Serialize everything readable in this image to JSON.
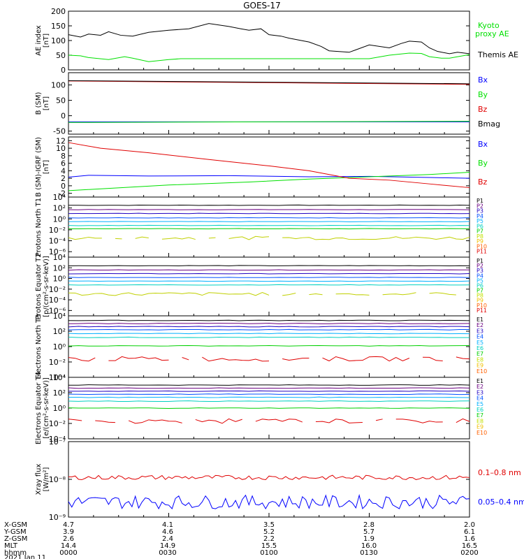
{
  "title": "GOES-17",
  "colors": {
    "black": "#000000",
    "green": "#00e000",
    "blue": "#0000ff",
    "red": "#e00000",
    "p": [
      "#000000",
      "#6a0080",
      "#2000c0",
      "#0050ff",
      "#00b0ff",
      "#00d0c0",
      "#00d000",
      "#c0e000",
      "#f0c000",
      "#ff6000",
      "#e00000"
    ]
  },
  "chart_data": [
    {
      "type": "line",
      "id": "ae",
      "ylabel": "AE index [nT]",
      "ylim": [
        0,
        200
      ],
      "yticks": [
        "0",
        "50",
        "100",
        "150",
        "200"
      ],
      "series": [
        {
          "name": "Kyoto proxy AE",
          "color": "green",
          "x": [
            0,
            3,
            5,
            10,
            14,
            16,
            20,
            25,
            28,
            38,
            45,
            50,
            56,
            60,
            70,
            75,
            80,
            85,
            88,
            90,
            93,
            95,
            100
          ],
          "y": [
            50,
            48,
            42,
            35,
            45,
            40,
            28,
            35,
            38,
            38,
            38,
            38,
            38,
            38,
            38,
            38,
            50,
            57,
            56,
            45,
            40,
            40,
            52
          ]
        },
        {
          "name": "Themis AE",
          "color": "black",
          "x": [
            0,
            3,
            5,
            8,
            10,
            13,
            16,
            20,
            25,
            30,
            35,
            40,
            43,
            45,
            48,
            50,
            53,
            55,
            60,
            63,
            65,
            70,
            75,
            80,
            83,
            85,
            88,
            90,
            92,
            95,
            97,
            100
          ],
          "y": [
            120,
            112,
            122,
            118,
            130,
            118,
            115,
            128,
            135,
            140,
            158,
            148,
            140,
            135,
            140,
            120,
            115,
            108,
            95,
            80,
            65,
            60,
            85,
            75,
            90,
            98,
            95,
            75,
            63,
            55,
            60,
            55
          ]
        }
      ],
      "legend": [
        "Kyoto",
        "proxy AE",
        "Themis AE"
      ]
    },
    {
      "type": "line",
      "id": "bsm",
      "ylabel": "B (SM) [nT]",
      "ylim": [
        -60,
        140
      ],
      "yticks": [
        "-50",
        "0",
        "50",
        "100"
      ],
      "series": [
        {
          "name": "Bx",
          "color": "blue",
          "x": [
            0,
            100
          ],
          "y": [
            -20,
            -20
          ]
        },
        {
          "name": "By",
          "color": "green",
          "x": [
            0,
            100
          ],
          "y": [
            -22,
            -18
          ]
        },
        {
          "name": "Bz",
          "color": "red",
          "x": [
            0,
            100
          ],
          "y": [
            113,
            102
          ]
        },
        {
          "name": "Bmag",
          "color": "black",
          "x": [
            0,
            100
          ],
          "y": [
            114,
            104
          ]
        }
      ],
      "legend": [
        "Bx",
        "By",
        "Bz",
        "Bmag"
      ]
    },
    {
      "type": "line",
      "id": "bigrf",
      "ylabel": "B (SM)-IGRF (SM) [nT]",
      "ylim": [
        -3,
        13
      ],
      "yticks": [
        "-2",
        "0",
        "2",
        "4",
        "6",
        "8",
        "10",
        "12"
      ],
      "series": [
        {
          "name": "Bx",
          "color": "blue",
          "x": [
            0,
            5,
            20,
            40,
            60,
            75,
            90,
            100
          ],
          "y": [
            2.3,
            2.8,
            2.6,
            2.7,
            2.4,
            2.5,
            2.2,
            2.0
          ]
        },
        {
          "name": "By",
          "color": "green",
          "x": [
            0,
            10,
            25,
            45,
            60,
            75,
            90,
            100
          ],
          "y": [
            -1.3,
            -0.7,
            0.2,
            1.0,
            1.8,
            2.4,
            3.0,
            3.6
          ]
        },
        {
          "name": "Bz",
          "color": "red",
          "x": [
            0,
            8,
            20,
            35,
            50,
            60,
            70,
            80,
            90,
            100
          ],
          "y": [
            11.5,
            10.0,
            8.8,
            7.0,
            5.3,
            4.0,
            2.0,
            1.5,
            0.5,
            -0.5
          ]
        }
      ],
      "legend": [
        "Bx",
        "By",
        "Bz"
      ]
    },
    {
      "type": "line",
      "id": "pnorth",
      "ylabel": "Protons North T1",
      "ylim": [
        -7,
        4
      ],
      "log": true,
      "yticks": [
        "10⁴",
        "10²",
        "10⁰",
        "10⁻²",
        "10⁻⁴",
        "10⁻⁶"
      ],
      "levels": [
        2.5,
        1.7,
        1.0,
        0.2,
        -0.5,
        -1.2,
        -1.8
      ],
      "series_names": [
        "P1",
        "P2",
        "P3",
        "P4",
        "P5",
        "P6",
        "P7",
        "P8",
        "P9",
        "P10",
        "P11"
      ]
    },
    {
      "type": "line",
      "id": "pequator",
      "ylabel": "Protons Equator T2 [p/(cm²-s-sr-keV)]",
      "ylim": [
        -7,
        4
      ],
      "log": true,
      "yticks": [
        "10⁴",
        "10²",
        "10⁰",
        "10⁻²",
        "10⁻⁴",
        "10⁻⁶"
      ],
      "levels": [
        2.4,
        1.6,
        0.9,
        0.2,
        -0.5,
        -1.2
      ],
      "series_names": [
        "P1",
        "P2",
        "P3",
        "P4",
        "P5",
        "P6",
        "P7",
        "P8",
        "P9",
        "P10",
        "P11"
      ]
    },
    {
      "type": "line",
      "id": "enorth",
      "ylabel": "Electrons North T3",
      "ylim": [
        -4,
        4
      ],
      "log": true,
      "yticks": [
        "10⁴",
        "10²",
        "10⁰",
        "10⁻²",
        "10⁻⁴"
      ],
      "levels": [
        3.4,
        3.0,
        2.6,
        2.2,
        1.7,
        1.2,
        0.1
      ],
      "series_names": [
        "E1",
        "E2",
        "E3",
        "E4",
        "E5",
        "E6",
        "E7",
        "E8",
        "E9",
        "E10"
      ]
    },
    {
      "type": "line",
      "id": "eequator",
      "ylabel": "Electrons Equator T4 [e/(cm²-s-sr-keV)]",
      "ylim": [
        -4,
        4
      ],
      "log": true,
      "yticks": [
        "10⁴",
        "10²",
        "10⁰",
        "10⁻²",
        "10⁻⁴"
      ],
      "levels": [
        3.0,
        2.6,
        2.2,
        1.8,
        1.4,
        0.9,
        0.0
      ],
      "series_names": [
        "E1",
        "E2",
        "E3",
        "E4",
        "E5",
        "E6",
        "E7",
        "E8",
        "E9",
        "E10"
      ]
    },
    {
      "type": "line",
      "id": "xray",
      "ylabel": "Xray flux [W/m²]",
      "ylim": [
        -9,
        -7
      ],
      "log": true,
      "yticks": [
        "10⁻⁷",
        "10⁻⁸",
        "10⁻⁹"
      ],
      "series": [
        {
          "name": "0.1-0.8 nm",
          "color": "red",
          "level": -7.95,
          "jitter": 0.06
        },
        {
          "name": "0.05-0.4 nm",
          "color": "blue",
          "level": -8.6,
          "jitter": 0.18
        }
      ],
      "legend": [
        "0.1–0.8 nm",
        "0.05–0.4 nm"
      ]
    }
  ],
  "footer": {
    "rows": [
      {
        "label": "X-GSM",
        "values": [
          "4.7",
          "4.1",
          "3.5",
          "2.8",
          "2.0"
        ]
      },
      {
        "label": "Y-GSM",
        "values": [
          "3.9",
          "4.6",
          "5.2",
          "5.7",
          "6.1"
        ]
      },
      {
        "label": "Z-GSM",
        "values": [
          "2.6",
          "2.4",
          "2.2",
          "1.9",
          "1.6"
        ]
      },
      {
        "label": "MLT",
        "values": [
          "14.4",
          "14.9",
          "15.5",
          "16.0",
          "16.5"
        ]
      },
      {
        "label": "hhmm",
        "values": [
          "0000",
          "0030",
          "0100",
          "0130",
          "0200"
        ]
      }
    ],
    "date": "2021 Jan 11"
  }
}
